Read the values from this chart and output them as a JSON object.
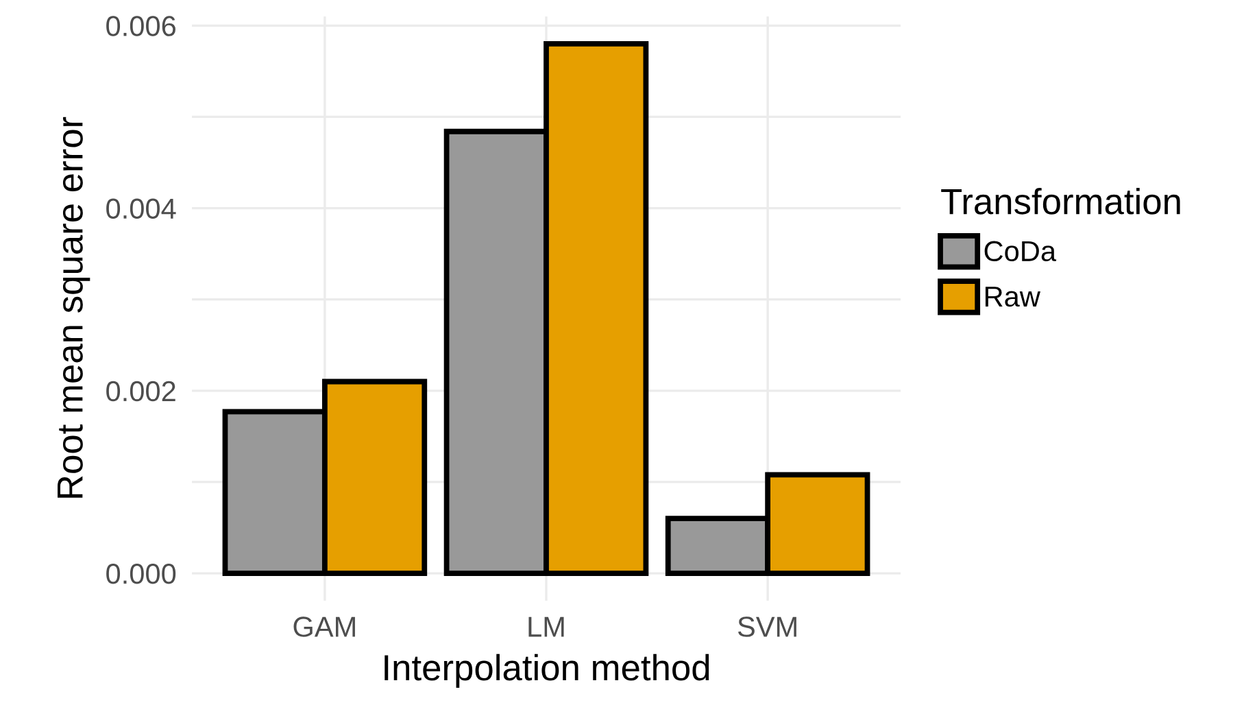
{
  "chart_data": {
    "type": "bar",
    "xlabel": "Interpolation method",
    "ylabel": "Root mean square error",
    "legend_title": "Transformation",
    "categories": [
      "GAM",
      "LM",
      "SVM"
    ],
    "series": [
      {
        "name": "CoDa",
        "color": "#999999",
        "values": [
          0.00177,
          0.00484,
          0.0006
        ]
      },
      {
        "name": "Raw",
        "color": "#e69f00",
        "values": [
          0.0021,
          0.0058,
          0.00108
        ]
      }
    ],
    "ylim": [
      -0.0003,
      0.0061
    ],
    "yticks": [
      {
        "value": 0,
        "label": "0.000"
      },
      {
        "value": 0.001,
        "label": null
      },
      {
        "value": 0.002,
        "label": "0.002"
      },
      {
        "value": 0.003,
        "label": null
      },
      {
        "value": 0.004,
        "label": "0.004"
      },
      {
        "value": 0.005,
        "label": null
      },
      {
        "value": 0.006,
        "label": "0.006"
      }
    ],
    "grid": true,
    "legend": "right"
  }
}
